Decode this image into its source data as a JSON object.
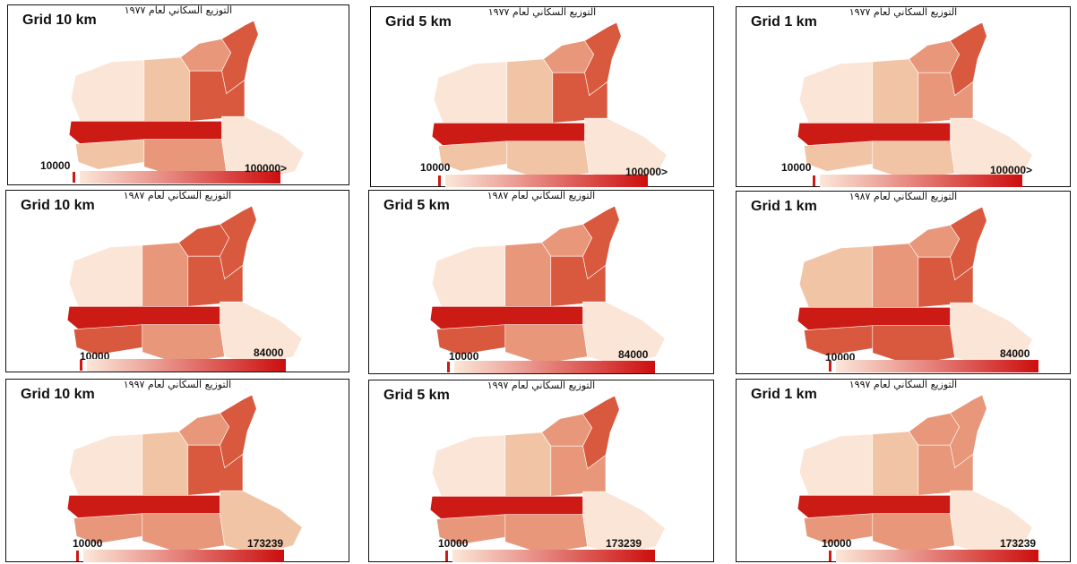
{
  "panels": [
    {
      "title": "التوزيع السكاني لعام ١٩٧٧",
      "grid_label": "Grid 10 km",
      "legend": {
        "min": "10000",
        "max": "100000>"
      }
    },
    {
      "title": "التوزيع السكاني لعام ١٩٧٧",
      "grid_label": "Grid 5 km",
      "legend": {
        "min": "10000",
        "max": "100000>"
      }
    },
    {
      "title": "التوزيع السكاني لعام ١٩٧٧",
      "grid_label": "Grid 1 km",
      "legend": {
        "min": "10000",
        "max": "100000>"
      }
    },
    {
      "title": "التوزيع السكاني لعام ١٩٨٧",
      "grid_label": "Grid 10 km",
      "legend": {
        "min": "10000",
        "max": "84000"
      }
    },
    {
      "title": "التوزيع السكاني لعام ١٩٨٧",
      "grid_label": "Grid 5 km",
      "legend": {
        "min": "10000",
        "max": "84000"
      }
    },
    {
      "title": "التوزيع السكاني لعام ١٩٨٧",
      "grid_label": "Grid 1 km",
      "legend": {
        "min": "10000",
        "max": "84000"
      }
    },
    {
      "title": "التوزيع السكاني لعام ١٩٩٧",
      "grid_label": "Grid 10 km",
      "legend": {
        "min": "10000",
        "max": "173239"
      }
    },
    {
      "title": "التوزيع السكاني لعام ١٩٩٧",
      "grid_label": "Grid 5 km",
      "legend": {
        "min": "10000",
        "max": "173239"
      }
    },
    {
      "title": "التوزيع السكاني لعام ١٩٩٧",
      "grid_label": "Grid 1 km",
      "legend": {
        "min": "10000",
        "max": "173239"
      }
    }
  ],
  "colors": {
    "ramp_low": "#fbe7d9",
    "ramp_high": "#cc0e0e",
    "classes": [
      "#fbe5d6",
      "#f2c4a6",
      "#e8977a",
      "#d9593f",
      "#cc1a14"
    ]
  }
}
